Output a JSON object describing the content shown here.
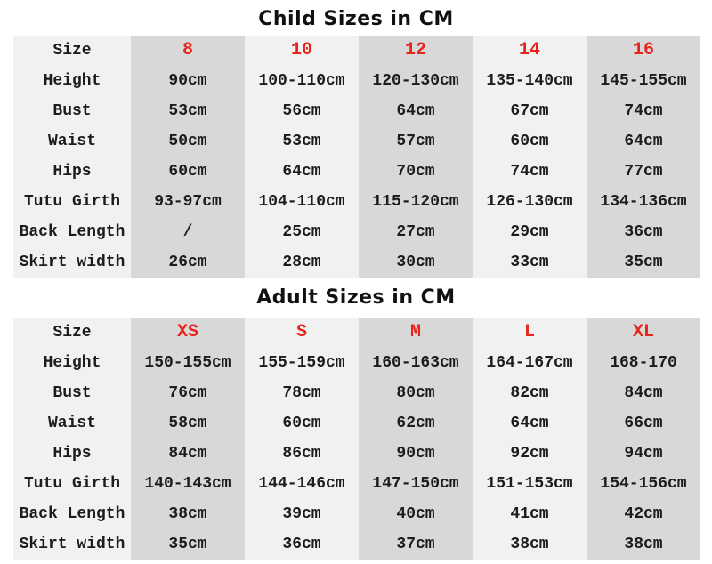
{
  "colors": {
    "stripe_dark": "#d8d8d8",
    "stripe_light": "#f1f1f1",
    "size_red": "#e8231a",
    "text": "#1c1c1c",
    "background": "#ffffff"
  },
  "tables": [
    {
      "id": "child-sizes",
      "title": "Child Sizes in CM",
      "rows": [
        {
          "label": "Size",
          "header": true,
          "values": [
            "8",
            "10",
            "12",
            "14",
            "16"
          ]
        },
        {
          "label": "Height",
          "header": false,
          "values": [
            "90cm",
            "100-110cm",
            "120-130cm",
            "135-140cm",
            "145-155cm"
          ]
        },
        {
          "label": "Bust",
          "header": false,
          "values": [
            "53cm",
            "56cm",
            "64cm",
            "67cm",
            "74cm"
          ]
        },
        {
          "label": "Waist",
          "header": false,
          "values": [
            "50cm",
            "53cm",
            "57cm",
            "60cm",
            "64cm"
          ]
        },
        {
          "label": "Hips",
          "header": false,
          "values": [
            "60cm",
            "64cm",
            "70cm",
            "74cm",
            "77cm"
          ]
        },
        {
          "label": "Tutu Girth",
          "header": false,
          "values": [
            "93-97cm",
            "104-110cm",
            "115-120cm",
            "126-130cm",
            "134-136cm"
          ]
        },
        {
          "label": "Back Length",
          "header": false,
          "values": [
            "/",
            "25cm",
            "27cm",
            "29cm",
            "36cm"
          ]
        },
        {
          "label": "Skirt width",
          "header": false,
          "values": [
            "26cm",
            "28cm",
            "30cm",
            "33cm",
            "35cm"
          ]
        }
      ]
    },
    {
      "id": "adult-sizes",
      "title": "Adult Sizes in CM",
      "rows": [
        {
          "label": "Size",
          "header": true,
          "values": [
            "XS",
            "S",
            "M",
            "L",
            "XL"
          ]
        },
        {
          "label": "Height",
          "header": false,
          "values": [
            "150-155cm",
            "155-159cm",
            "160-163cm",
            "164-167cm",
            "168-170"
          ]
        },
        {
          "label": "Bust",
          "header": false,
          "values": [
            "76cm",
            "78cm",
            "80cm",
            "82cm",
            "84cm"
          ]
        },
        {
          "label": "Waist",
          "header": false,
          "values": [
            "58cm",
            "60cm",
            "62cm",
            "64cm",
            "66cm"
          ]
        },
        {
          "label": "Hips",
          "header": false,
          "values": [
            "84cm",
            "86cm",
            "90cm",
            "92cm",
            "94cm"
          ]
        },
        {
          "label": "Tutu Girth",
          "header": false,
          "values": [
            "140-143cm",
            "144-146cm",
            "147-150cm",
            "151-153cm",
            "154-156cm"
          ]
        },
        {
          "label": "Back Length",
          "header": false,
          "values": [
            "38cm",
            "39cm",
            "40cm",
            "41cm",
            "42cm"
          ]
        },
        {
          "label": "Skirt width",
          "header": false,
          "values": [
            "35cm",
            "36cm",
            "37cm",
            "38cm",
            "38cm"
          ]
        }
      ]
    }
  ]
}
